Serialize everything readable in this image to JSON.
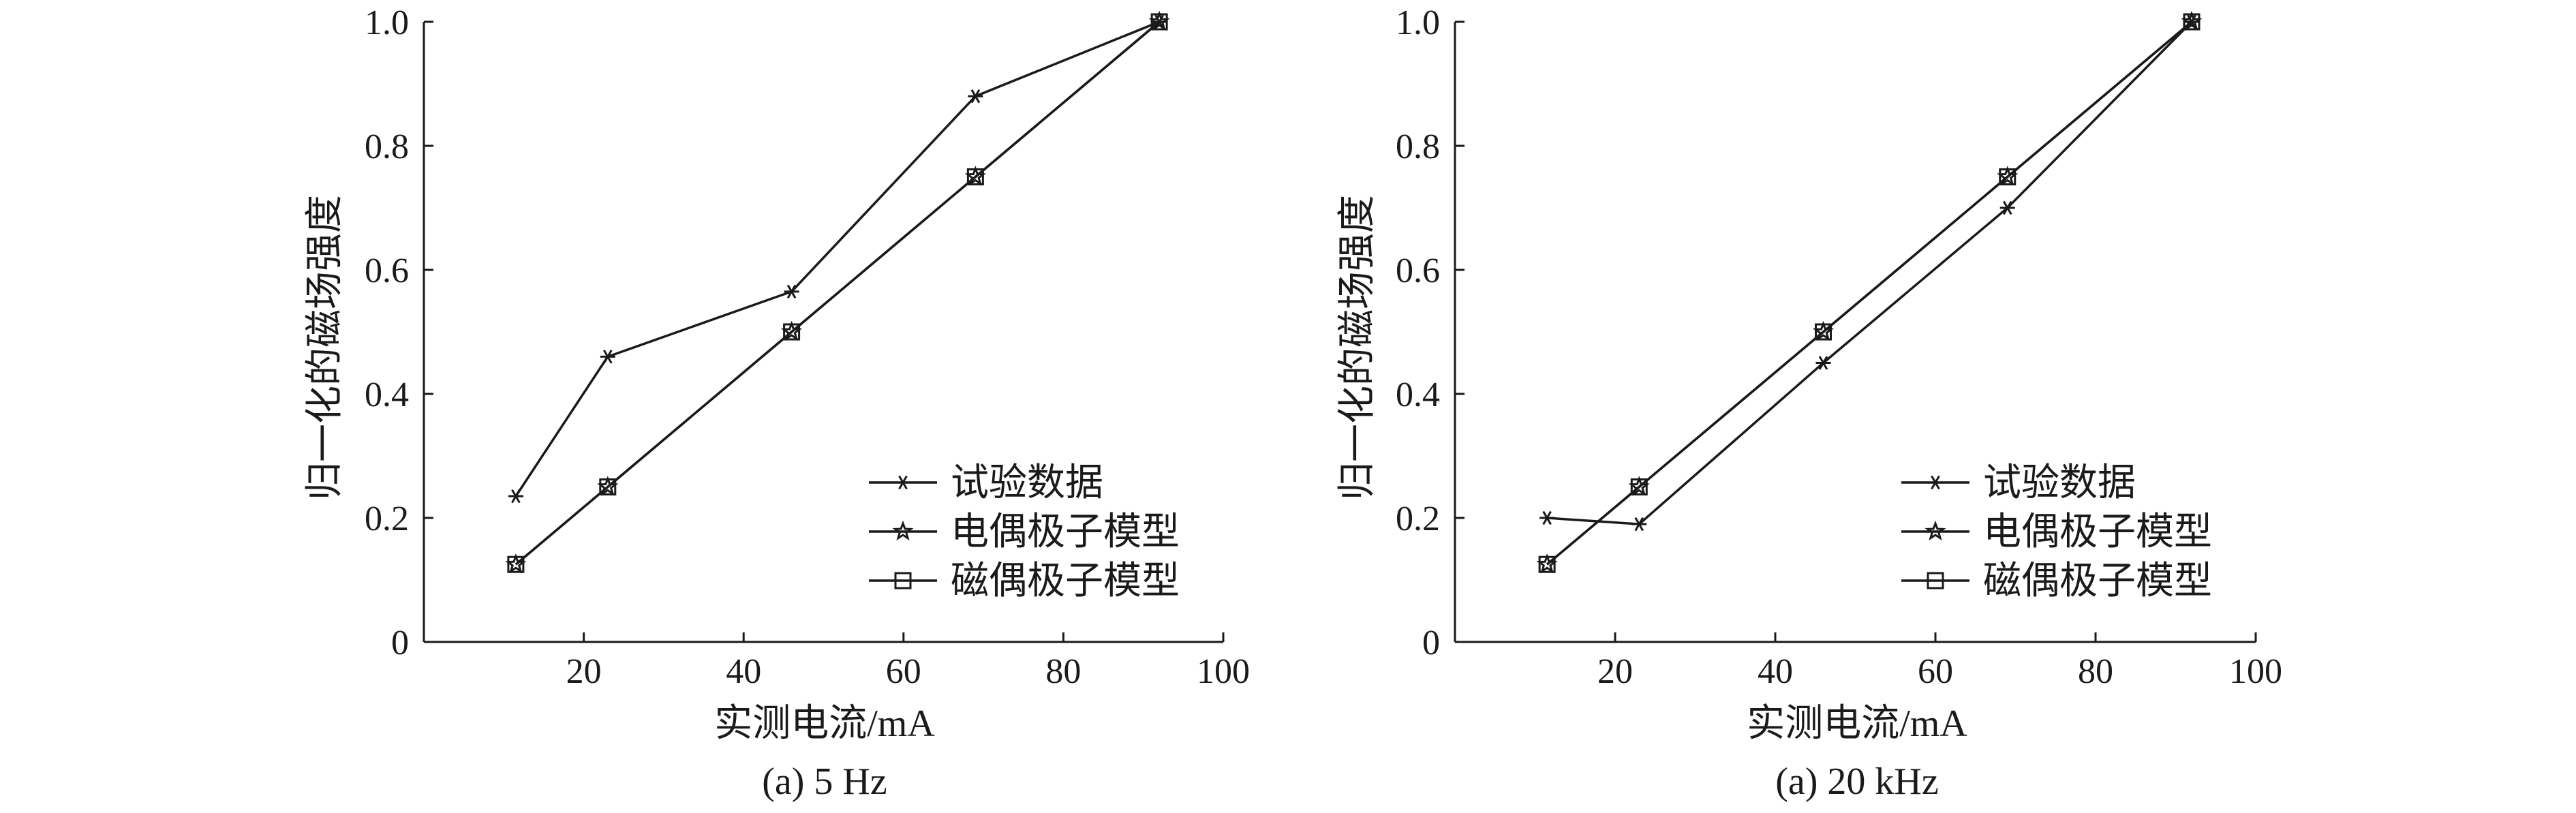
{
  "chart_data": [
    {
      "type": "line",
      "xlabel": "实测电流/mA",
      "ylabel": "归一化的磁场强度",
      "caption": "(a) 5 Hz",
      "xlim": [
        0,
        100
      ],
      "ylim": [
        0,
        1.0
      ],
      "xticks": [
        "20",
        "40",
        "60",
        "80",
        "100"
      ],
      "yticks": [
        "0",
        "0.2",
        "0.4",
        "0.6",
        "0.8",
        "1.0"
      ],
      "xtick_values": [
        20,
        40,
        60,
        80,
        100
      ],
      "ytick_values": [
        0,
        0.2,
        0.4,
        0.6,
        0.8,
        1.0
      ],
      "legend_position": "lower-right",
      "series": [
        {
          "name": "试验数据",
          "marker": "asterisk",
          "x": [
            11.5,
            23,
            46,
            69,
            92
          ],
          "y": [
            0.235,
            0.46,
            0.565,
            0.88,
            1.0
          ]
        },
        {
          "name": "电偶极子模型",
          "marker": "star",
          "x": [
            11.5,
            23,
            46,
            69,
            92
          ],
          "y": [
            0.125,
            0.25,
            0.5,
            0.75,
            1.0
          ]
        },
        {
          "name": "磁偶极子模型",
          "marker": "square",
          "x": [
            11.5,
            23,
            46,
            69,
            92
          ],
          "y": [
            0.125,
            0.25,
            0.5,
            0.75,
            1.0
          ]
        }
      ]
    },
    {
      "type": "line",
      "xlabel": "实测电流/mA",
      "ylabel": "归一化的磁场强度",
      "caption": "(a) 20 kHz",
      "xlim": [
        0,
        100
      ],
      "ylim": [
        0,
        1.0
      ],
      "xticks": [
        "20",
        "40",
        "60",
        "80",
        "100"
      ],
      "yticks": [
        "0",
        "0.2",
        "0.4",
        "0.6",
        "0.8",
        "1.0"
      ],
      "xtick_values": [
        20,
        40,
        60,
        80,
        100
      ],
      "ytick_values": [
        0,
        0.2,
        0.4,
        0.6,
        0.8,
        1.0
      ],
      "legend_position": "lower-right",
      "series": [
        {
          "name": "试验数据",
          "marker": "asterisk",
          "x": [
            11.5,
            23,
            46,
            69,
            92
          ],
          "y": [
            0.2,
            0.19,
            0.45,
            0.7,
            1.0
          ]
        },
        {
          "name": "电偶极子模型",
          "marker": "star",
          "x": [
            11.5,
            23,
            46,
            69,
            92
          ],
          "y": [
            0.125,
            0.25,
            0.5,
            0.75,
            1.0
          ]
        },
        {
          "name": "磁偶极子模型",
          "marker": "square",
          "x": [
            11.5,
            23,
            46,
            69,
            92
          ],
          "y": [
            0.125,
            0.25,
            0.5,
            0.75,
            1.0
          ]
        }
      ]
    }
  ]
}
